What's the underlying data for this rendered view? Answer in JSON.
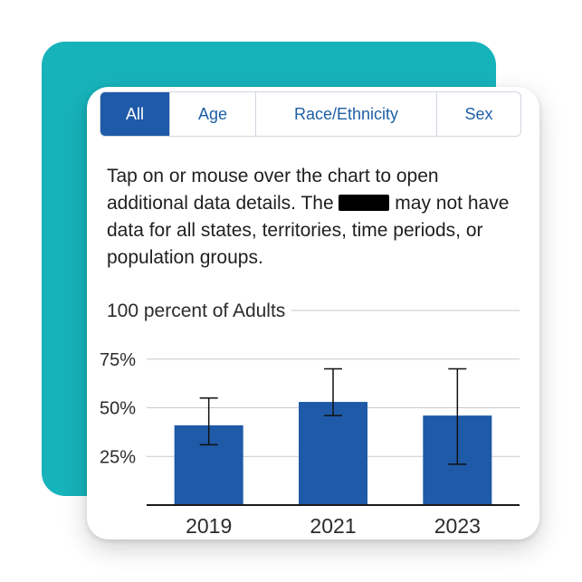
{
  "tabs": [
    {
      "label": "All",
      "active": true
    },
    {
      "label": "Age",
      "active": false
    },
    {
      "label": "Race/Ethnicity",
      "active": false
    },
    {
      "label": "Sex",
      "active": false
    }
  ],
  "description": {
    "before": "Tap on or mouse over the chart to open additional data details. The ",
    "after": " may not have data for all states, territories, time periods, or population groups."
  },
  "colors": {
    "accent": "#17b3bb",
    "bar": "#1e5aa8",
    "active_tab": "#1e5aa8"
  },
  "chart_data": {
    "type": "bar",
    "title": "100 percent of Adults",
    "categories": [
      "2019",
      "2021",
      "2023"
    ],
    "values": [
      41,
      53,
      46
    ],
    "error_bars": [
      {
        "low": 31,
        "high": 55
      },
      {
        "low": 46,
        "high": 70
      },
      {
        "low": 21,
        "high": 70
      }
    ],
    "y_ticks": [
      {
        "value": 75,
        "label": "75%"
      },
      {
        "value": 50,
        "label": "50%"
      },
      {
        "value": 25,
        "label": "25%"
      }
    ],
    "ylim": [
      0,
      100
    ],
    "grid": true
  }
}
